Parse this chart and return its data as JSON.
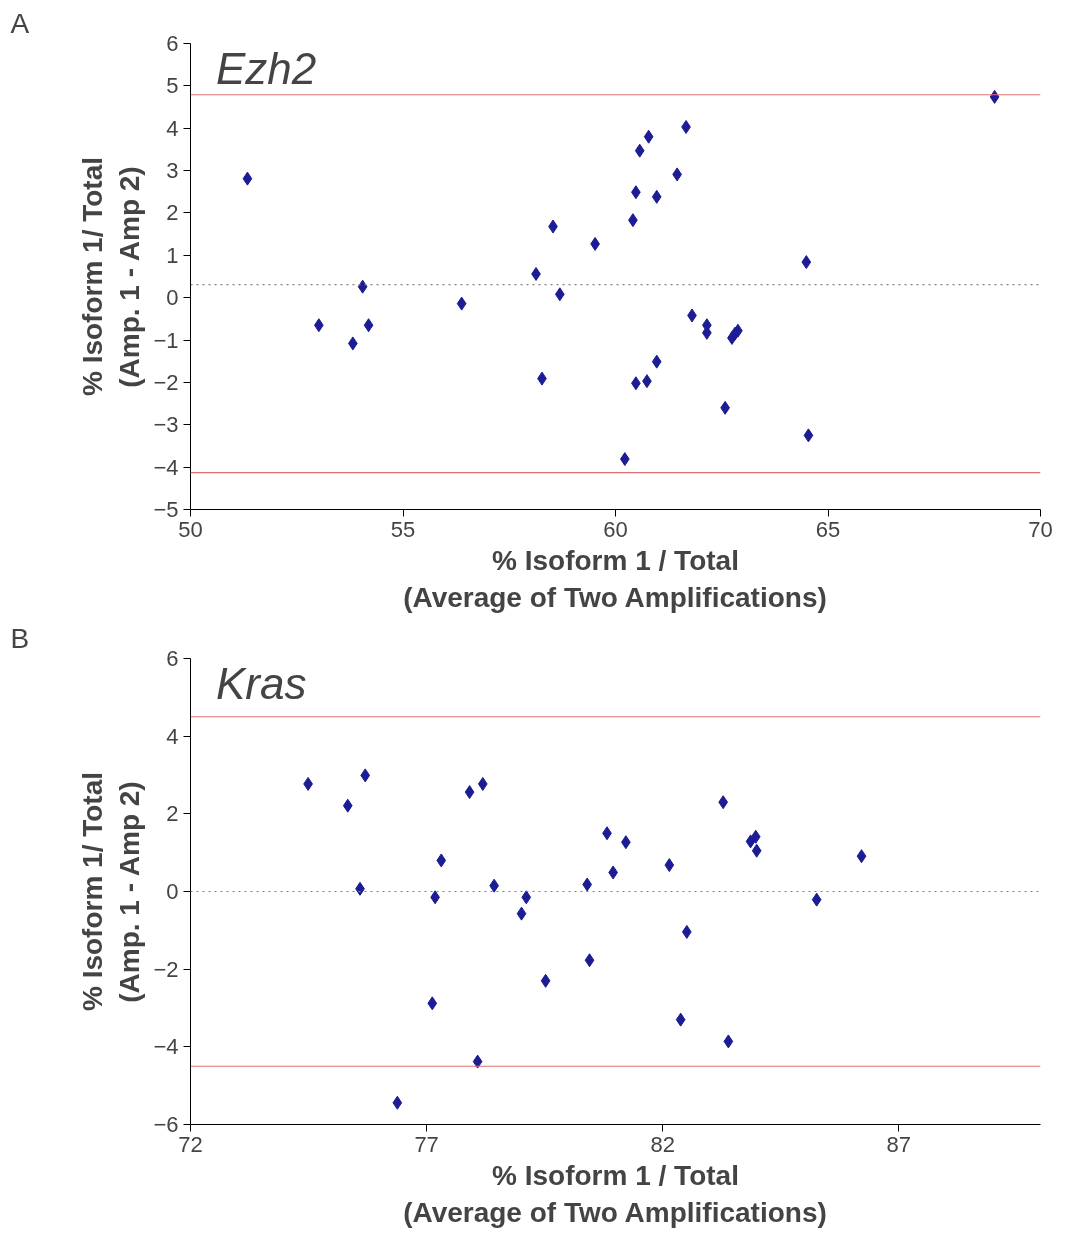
{
  "chart_data": [
    {
      "type": "scatter",
      "title": "Ezh2",
      "xlabel": "% Isoform 1 / Total\n(Average of Two Amplifications)",
      "ylabel": "% Isoform 1/ Total\n(Amp. 1 - Amp 2)",
      "annotations": [
        "A"
      ],
      "x": [
        51.34,
        53.02,
        53.82,
        54.05,
        54.19,
        56.38,
        58.13,
        58.27,
        58.53,
        58.69,
        59.52,
        60.22,
        60.41,
        60.48,
        60.48,
        60.57,
        60.74,
        60.78,
        60.97,
        60.97,
        61.45,
        61.66,
        61.8,
        62.15,
        62.15,
        62.58,
        62.74,
        62.81,
        62.88,
        64.49,
        64.54,
        68.92
      ],
      "series": [
        {
          "color": "#1c1c94",
          "values": [
            2.81,
            -0.65,
            -1.08,
            0.26,
            -0.65,
            -0.14,
            0.56,
            -1.91,
            1.68,
            0.08,
            1.27,
            -3.81,
            1.83,
            2.49,
            -2.02,
            3.47,
            -1.97,
            3.8,
            2.38,
            -1.51,
            2.91,
            4.03,
            -0.42,
            -0.65,
            -0.83,
            -2.6,
            -0.95,
            -0.85,
            -0.78,
            0.84,
            -3.25,
            4.74
          ]
        }
      ],
      "marker": "diamond",
      "grid": false,
      "xlim": [
        50,
        70
      ],
      "xticks": [
        50,
        55,
        60,
        65,
        70
      ],
      "ylim": [
        -5,
        6
      ],
      "yticks": [
        -5,
        -4,
        -3,
        -2,
        -1,
        0,
        1,
        2,
        3,
        4,
        5,
        6
      ],
      "ref_lines": [
        {
          "axis": "y",
          "value": 4.79,
          "color": "#e07070",
          "line_style": "solid"
        },
        {
          "axis": "y",
          "value": -4.13,
          "color": "#e07070",
          "line_style": "solid"
        },
        {
          "axis": "y",
          "value": 0.31,
          "color": "#808080",
          "line_style": "dotted"
        }
      ]
    },
    {
      "type": "scatter",
      "title": "Kras",
      "xlabel": "% Isoform 1 / Total\n(Average of Two Amplifications)",
      "ylabel": "% Isoform 1/ Total\n(Amp. 1 - Amp 2)",
      "annotations": [
        "B"
      ],
      "x": [
        74.49,
        75.33,
        75.59,
        75.7,
        76.38,
        77.12,
        77.18,
        77.31,
        77.91,
        78.08,
        78.19,
        78.43,
        79.01,
        79.11,
        79.52,
        80.4,
        80.45,
        80.82,
        80.95,
        81.22,
        82.14,
        82.38,
        82.51,
        83.28,
        83.39,
        83.86,
        83.97,
        83.99,
        85.26,
        86.21
      ],
      "series": [
        {
          "color": "#1c1c94",
          "values": [
            2.77,
            2.21,
            0.07,
            2.99,
            -5.44,
            -2.88,
            -0.15,
            0.8,
            2.56,
            -4.38,
            2.77,
            0.15,
            -0.57,
            -0.15,
            -2.3,
            0.18,
            -1.77,
            1.5,
            0.49,
            1.27,
            0.68,
            -3.3,
            -1.04,
            2.3,
            -3.86,
            1.29,
            1.41,
            1.05,
            -0.21,
            0.91
          ]
        }
      ],
      "marker": "diamond",
      "grid": false,
      "xlim": [
        72,
        90
      ],
      "xticks": [
        72,
        77,
        82,
        87
      ],
      "ylim": [
        -6,
        6
      ],
      "yticks": [
        -6,
        -4,
        -2,
        0,
        2,
        4,
        6
      ],
      "ref_lines": [
        {
          "axis": "y",
          "value": 4.5,
          "color": "#e07070",
          "line_style": "solid"
        },
        {
          "axis": "y",
          "value": -4.5,
          "color": "#e07070",
          "line_style": "solid"
        },
        {
          "axis": "y",
          "value": 0,
          "color": "#808080",
          "line_style": "dotted"
        }
      ]
    }
  ]
}
